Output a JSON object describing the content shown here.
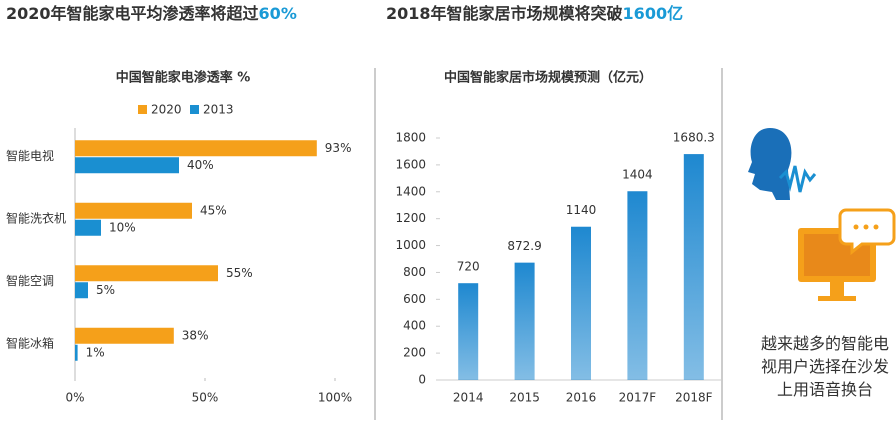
{
  "headlines": [
    {
      "text": "2020年智能家电平均渗透率将超过",
      "highlight": "60%"
    },
    {
      "text": "2018年智能家居市场规模将突破",
      "highlight": "1600亿"
    }
  ],
  "side_note": "越来越多的智能电视用户选择在沙发上用语音换台",
  "chart_data": [
    {
      "type": "barh",
      "title": "中国智能家电渗透率 %",
      "categories": [
        "智能电视",
        "智能洗衣机",
        "智能空调",
        "智能冰箱"
      ],
      "series": [
        {
          "name": "2020",
          "color": "#f5a01a",
          "values": [
            93,
            45,
            55,
            38
          ],
          "value_labels": [
            "93%",
            "45%",
            "55%",
            "38%"
          ]
        },
        {
          "name": "2013",
          "color": "#1a8fd1",
          "values": [
            40,
            10,
            5,
            1
          ],
          "value_labels": [
            "40%",
            "10%",
            "5%",
            "1%"
          ]
        }
      ],
      "xlim": [
        0,
        100
      ],
      "xticks": [
        {
          "value": 0,
          "label": "0%"
        },
        {
          "value": 50,
          "label": "50%"
        },
        {
          "value": 100,
          "label": "100%"
        }
      ],
      "legend": "top"
    },
    {
      "type": "bar",
      "title": "中国智能家居市场规模预测（亿元）",
      "categories": [
        "2014",
        "2015",
        "2016",
        "2017F",
        "2018F"
      ],
      "values": [
        720,
        872.9,
        1140,
        1404,
        1680.3
      ],
      "color": "#1e88d0",
      "ylim": [
        0,
        1800
      ],
      "yticks": [
        0,
        200,
        400,
        600,
        800,
        1000,
        1200,
        1400,
        1600,
        1800
      ]
    }
  ]
}
